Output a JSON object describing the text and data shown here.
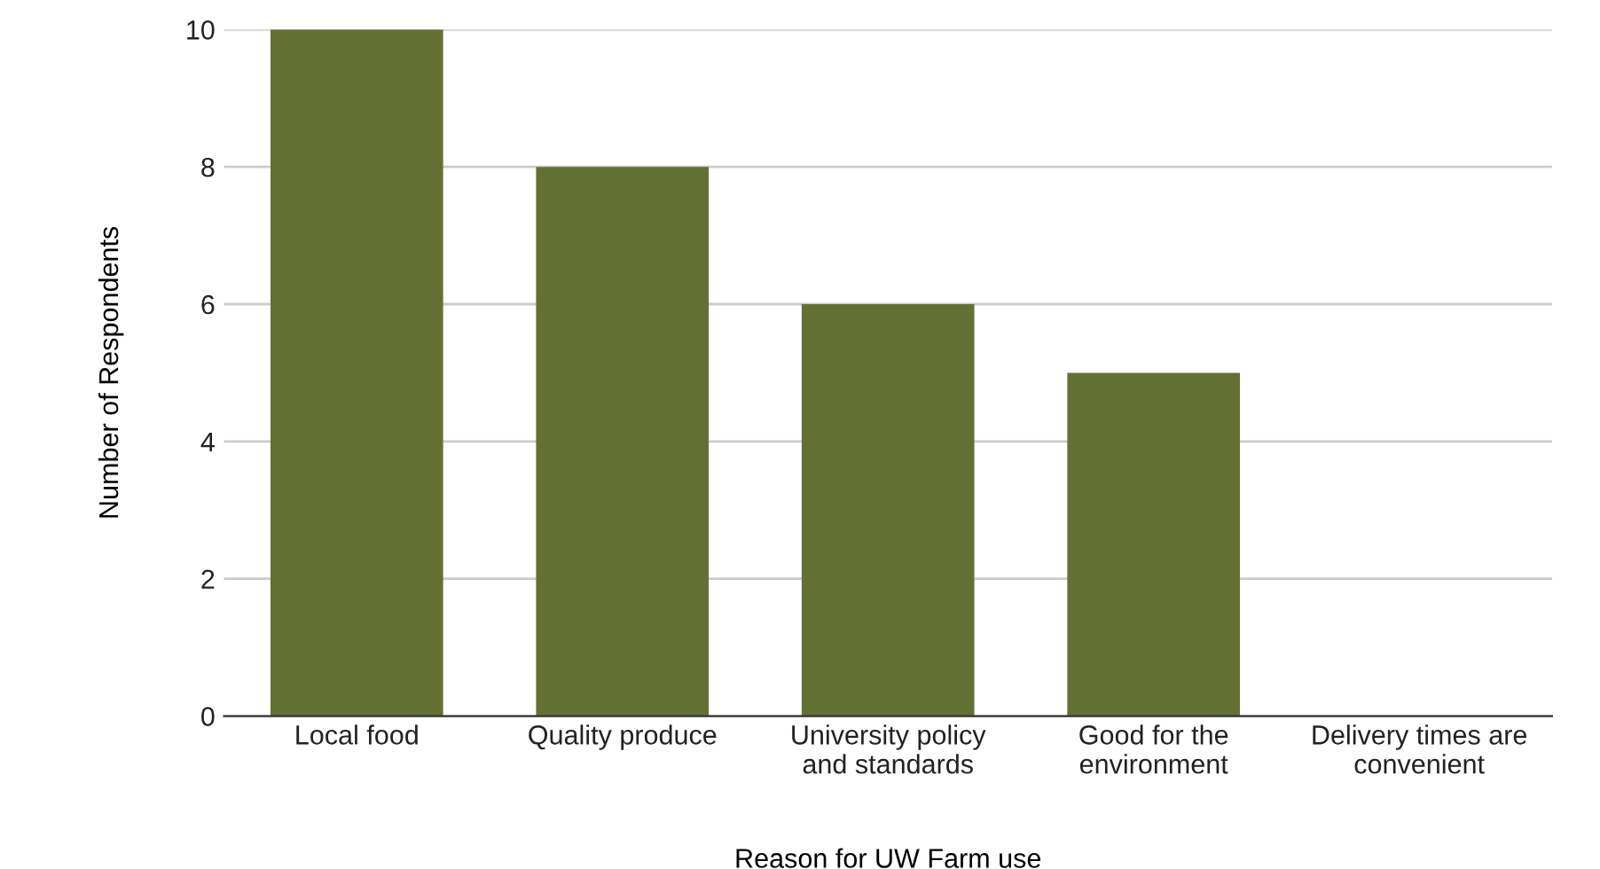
{
  "chart_data": {
    "type": "bar",
    "xlabel": "Reason for UW Farm use",
    "ylabel": "Number of Respondents",
    "categories": [
      "Local food",
      "Quality produce",
      "University policy\nand standards",
      "Good for the\nenvironment",
      "Delivery times are\nconvenient"
    ],
    "values": [
      10,
      8,
      6,
      5,
      0
    ],
    "color": "#647033",
    "ylim": [
      0,
      10
    ],
    "yticks": [
      0,
      2,
      4,
      6,
      8,
      10
    ],
    "grid": "y",
    "legend": false
  }
}
